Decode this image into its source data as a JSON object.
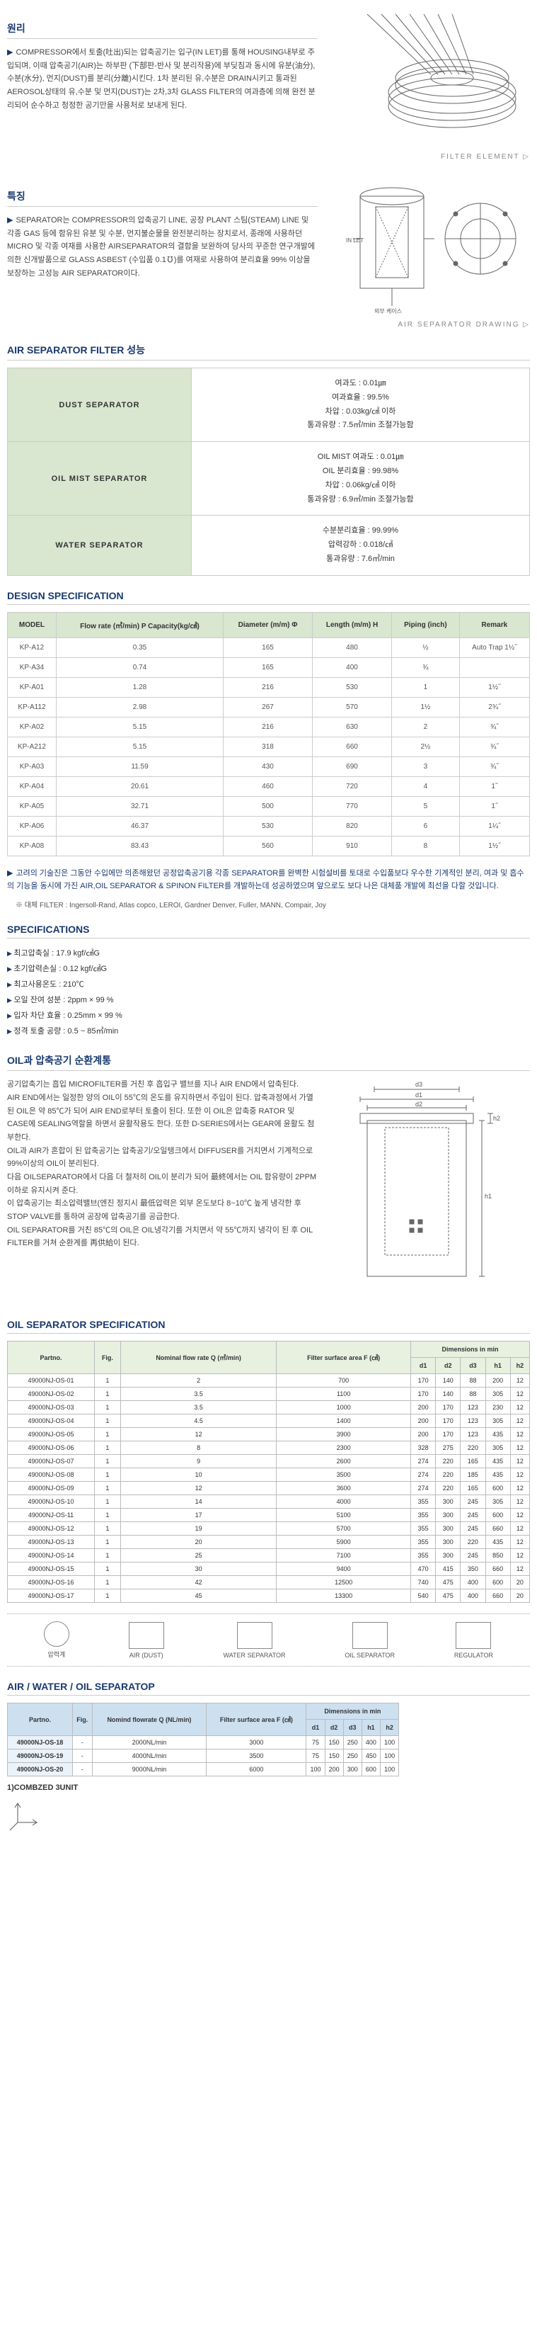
{
  "principle": {
    "title": "원리",
    "body": "COMPRESSOR에서 토출(吐出)되는 압축공기는 입구(IN LET)를 통해 HOUSING내부로 주입되며, 이때 압축공기(AIR)는 하부판 (下部판-반사 및 분리작용)에 부딪침과 동시에 유분(油分), 수분(水分), 먼지(DUST)를 분리(分離)시킨다.\n1차 분리된 유,수분은 DRAIN시키고 통과된 AEROSOL상태의 유,수분 및 먼지(DUST)는 2차,3차 GLASS FILTER의 여과층에 의해 완전 분리되어 순수하고 청정한 공기만을 사용처로 보내게 된다.",
    "caption": "FILTER ELEMENT ▷"
  },
  "feature": {
    "title": "특징",
    "body": "SEPARATOR는 COMPRESSOR의 압축공기 LINE, 공장 PLANT 스팀(STEAM) LINE 및 각종 GAS 등에 함유된 유분 및 수분, 먼지불순물을 완전분리하는 장치로서, 종래에 사용하던 MICRO 및 각종 여재를 사용한 AIRSEPARATOR의 결함을 보완하여 당사의 꾸준한 연구개발에 의한 신개발품으로 GLASS ASBEST (수입품 0.1℧)를 여재로 사용하여 분리효율 99% 이상을 보장하는 고성능 AIR SEPARATOR이다.",
    "caption": "AIR SEPARATOR DRAWING ▷"
  },
  "perf": {
    "title": "AIR SEPARATOR FILTER 성능",
    "rows": [
      {
        "label": "DUST SEPARATOR",
        "val": "여과도 : 0.01㎛\n여과효율 : 99.5%\n차압 : 0.03kg/㎠ 이하\n통과유량 : 7.5㎥/min 조절가능함"
      },
      {
        "label": "OIL MIST SEPARATOR",
        "val": "OIL MIST 여과도 : 0.01㎛\nOIL 분리효율 : 99.98%\n차압 : 0.06kg/㎠ 이하\n통과유량 : 6.9㎥/min 조절가능함"
      },
      {
        "label": "WATER SEPARATOR",
        "val": "수분분리효율 : 99.99%\n압력강하 : 0.018/㎠\n통과유량 : 7.6㎥/min"
      }
    ]
  },
  "design": {
    "title": "DESIGN SPECIFICATION",
    "headers": [
      "MODEL",
      "Flow rate (㎥/min) P Capacity(kg/㎠)",
      "Diameter (m/m) Φ",
      "Length (m/m) H",
      "Piping (inch)",
      "Remark"
    ],
    "rows": [
      [
        "KP-A12",
        "0.35",
        "165",
        "480",
        "½",
        "Auto Trap 1½˝"
      ],
      [
        "KP-A34",
        "0.74",
        "165",
        "400",
        "¾",
        ""
      ],
      [
        "KP-A01",
        "1.28",
        "216",
        "530",
        "1",
        "1½˝"
      ],
      [
        "KP-A112",
        "2.98",
        "267",
        "570",
        "1½",
        "2¾˝"
      ],
      [
        "KP-A02",
        "5.15",
        "216",
        "630",
        "2",
        "¾˝"
      ],
      [
        "KP-A212",
        "5.15",
        "318",
        "660",
        "2½",
        "¾˝"
      ],
      [
        "KP-A03",
        "11.59",
        "430",
        "690",
        "3",
        "¾˝"
      ],
      [
        "KP-A04",
        "20.61",
        "460",
        "720",
        "4",
        "1˝"
      ],
      [
        "KP-A05",
        "32.71",
        "500",
        "770",
        "5",
        "1˝"
      ],
      [
        "KP-A06",
        "46.37",
        "530",
        "820",
        "6",
        "1¼˝"
      ],
      [
        "KP-A08",
        "83.43",
        "560",
        "910",
        "8",
        "1½˝"
      ]
    ],
    "note": "고려의 기술진은 그동안 수입에만 의존해왔던 공정압축공기용 각종 SEPARATOR를 완벽한 시험설비를 토대로 수입품보다 우수한 기계적인 분리, 여과 및 흡수의 기능을 동시에 가진 AIR,OIL SEPARATOR & SPINON FILTER를 개발하는데 성공하였으며 앞으로도 보다 나은 대체품 개발에 최선을 다할 것입니다.",
    "note_sub": "※ 대체 FILTER : Ingersoll-Rand, Atlas copco, LEROI, Gardner Denver, Fuller, MANN, Compair, Joy"
  },
  "specs": {
    "title": "SPECIFICATIONS",
    "items": [
      "최고압축실 : 17.9 kgf/㎠G",
      "초기압력손실 : 0.12 kgf/㎠G",
      "최고사용온도 : 210℃",
      "오일 잔여 성분 : 2ppm × 99 %",
      "입자 차단 효율 : 0.25mm × 99 %",
      "정격 토출 공량 : 0.5 ~ 85㎥/min"
    ]
  },
  "oilcycle": {
    "title": "OIL과 압축공기 순환계통",
    "body": "공기압축기는 흡입 MICROFILTER를 거친 후 흡입구 밸브를 지나 AIR END에서 압축된다.\nAIR END에서는 일정한 양의 OIL이 55℃의 온도를 유지하면서 주입이 된다. 압축과정에서 가열된 OIL은 약 85℃가 되어 AIR END로부터 토출이 된다. 또한 이 OIL은 압축중 RATOR 및 CASE에 SEALING역할을 하면서 윤활작용도 한다. 또한 D-SERIES에서는 GEAR에 윤활도 첨부한다.\nOIL과 AIR가 혼합이 된 압축공기는 압축공기/오일탱크에서 DIFFUSER를 거치면서 기계적으로 99%이상의 OIL이 분리된다.\n다음 OILSEPARATOR에서 다음 더 철저히 OIL이 분리가 되어 最終에서는 OIL 함유량이 2PPM 이하로 유지시켜 준다.\n이 압축공기는 최소압력밸브(엔진 정지시 最低압력은 외부 온도보다 8~10℃ 높게 냉각한 후 STOP VALVE를 통하여 공장에 압축공기를 공급한다.\nOIL SEPARATOR를 거친 85℃의 OIL은 OIL냉각기를 거치면서 약 55℃까지 냉각이 된 후 OIL FILTER를 거쳐 순환계를 再供給이 된다."
  },
  "oilsep": {
    "title": "OIL SEPARATOR SPECIFICATION",
    "headers": [
      "Partno.",
      "Fig.",
      "Nominal flow rate Q (㎥/min)",
      "Filter surface area F (㎠)",
      "d1",
      "d2",
      "d3",
      "h1",
      "h2"
    ],
    "dim_header": "Dimensions in min",
    "groups": [
      [
        [
          "49000NJ-OS-01",
          "1",
          "2",
          "700",
          "170",
          "140",
          "88",
          "200",
          "12"
        ],
        [
          "49000NJ-OS-02",
          "1",
          "3.5",
          "1100",
          "170",
          "140",
          "88",
          "305",
          "12"
        ]
      ],
      [
        [
          "49000NJ-OS-03",
          "1",
          "3.5",
          "1000",
          "200",
          "170",
          "123",
          "230",
          "12"
        ],
        [
          "49000NJ-OS-04",
          "1",
          "4.5",
          "1400",
          "200",
          "170",
          "123",
          "305",
          "12"
        ],
        [
          "49000NJ-OS-05",
          "1",
          "12",
          "3900",
          "200",
          "170",
          "123",
          "435",
          "12"
        ]
      ],
      [
        [
          "49000NJ-OS-06",
          "1",
          "8",
          "2300",
          "328",
          "275",
          "220",
          "305",
          "12"
        ],
        [
          "49000NJ-OS-07",
          "1",
          "9",
          "2600",
          "274",
          "220",
          "165",
          "435",
          "12"
        ],
        [
          "49000NJ-OS-08",
          "1",
          "10",
          "3500",
          "274",
          "220",
          "185",
          "435",
          "12"
        ],
        [
          "49000NJ-OS-09",
          "1",
          "12",
          "3600",
          "274",
          "220",
          "165",
          "600",
          "12"
        ],
        [
          "49000NJ-OS-10",
          "1",
          "14",
          "4000",
          "355",
          "300",
          "245",
          "305",
          "12"
        ]
      ],
      [
        [
          "49000NJ-OS-11",
          "1",
          "17",
          "5100",
          "355",
          "300",
          "245",
          "600",
          "12"
        ],
        [
          "49000NJ-OS-12",
          "1",
          "19",
          "5700",
          "355",
          "300",
          "245",
          "660",
          "12"
        ],
        [
          "49000NJ-OS-13",
          "1",
          "20",
          "5900",
          "355",
          "300",
          "220",
          "435",
          "12"
        ],
        [
          "49000NJ-OS-14",
          "1",
          "25",
          "7100",
          "355",
          "300",
          "245",
          "850",
          "12"
        ],
        [
          "49000NJ-OS-15",
          "1",
          "30",
          "9400",
          "470",
          "415",
          "350",
          "660",
          "12"
        ],
        [
          "49000NJ-OS-16",
          "1",
          "42",
          "12500",
          "740",
          "475",
          "400",
          "600",
          "20"
        ],
        [
          "49000NJ-OS-17",
          "1",
          "45",
          "13300",
          "540",
          "475",
          "400",
          "660",
          "20"
        ]
      ]
    ]
  },
  "regulator": {
    "items": [
      "압력계",
      "AIR (DUST)",
      "WATER SEPARATOR",
      "OIL SEPARATOR",
      "REGULATOR"
    ]
  },
  "combined": {
    "title": "AIR / WATER / OIL SEPARATOP",
    "headers": [
      "Partno.",
      "Fig.",
      "Nomind flowrate Q (NL/min)",
      "Filter surface area F (㎠)",
      "d1",
      "d2",
      "d3",
      "h1",
      "h2"
    ],
    "dim_header": "Dimensions in min",
    "rows": [
      [
        "49000NJ-OS-18",
        "-",
        "2000NL/min",
        "3000",
        "75",
        "150",
        "250",
        "400",
        "100"
      ],
      [
        "49000NJ-OS-19",
        "-",
        "4000NL/min",
        "3500",
        "75",
        "150",
        "250",
        "450",
        "100"
      ],
      [
        "49000NJ-OS-20",
        "-",
        "9000NL/min",
        "6000",
        "100",
        "200",
        "300",
        "600",
        "100"
      ]
    ],
    "footer": "1)COMBZED 3UNIT"
  }
}
